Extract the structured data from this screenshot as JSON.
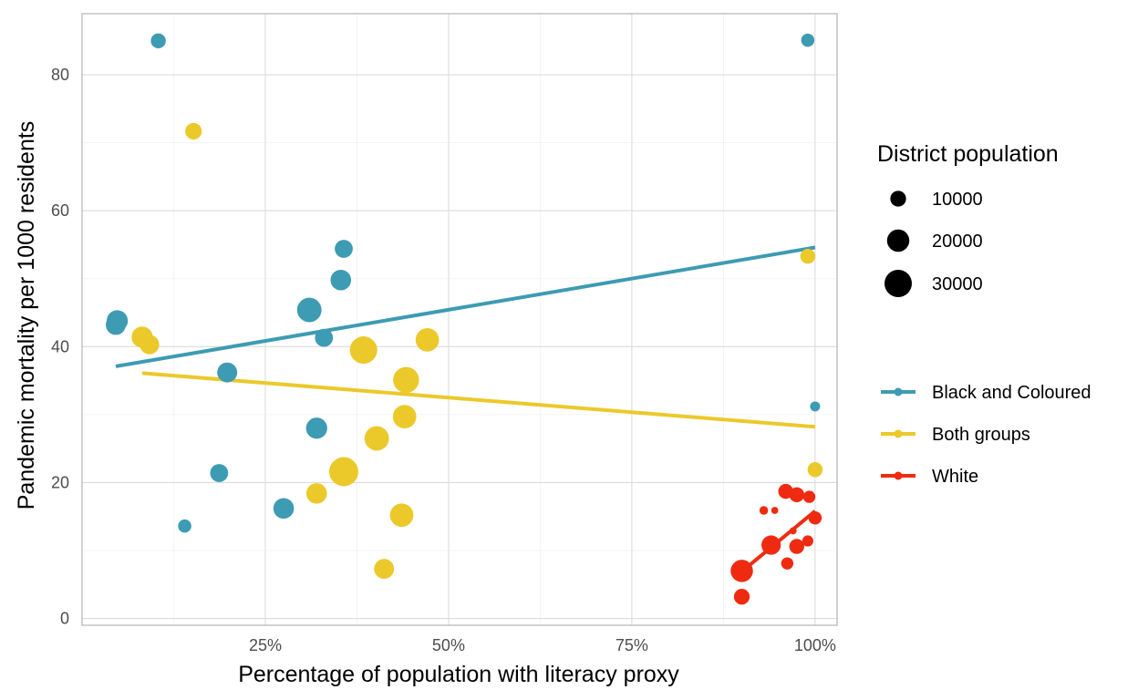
{
  "chart_data": {
    "type": "scatter",
    "title": "",
    "xlabel": "Percentage of population with literacy proxy",
    "ylabel": "Pandemic mortality per 1000 residents",
    "xlim": [
      0.0,
      1.03
    ],
    "ylim": [
      -1,
      89
    ],
    "x_ticks": [
      0.25,
      0.5,
      0.75,
      1.0
    ],
    "x_tick_labels": [
      "25%",
      "50%",
      "75%",
      "100%"
    ],
    "y_ticks": [
      0,
      20,
      40,
      60,
      80
    ],
    "y_tick_labels": [
      "0",
      "20",
      "40",
      "60",
      "80"
    ],
    "grid": true,
    "legend_position": "right",
    "size_legend": {
      "title": "District population",
      "entries": [
        {
          "value": 10000,
          "label": "10000"
        },
        {
          "value": 20000,
          "label": "20000"
        },
        {
          "value": 30000,
          "label": "30000"
        }
      ]
    },
    "series": [
      {
        "name": "Black and Coloured",
        "color": "#3d9bb3",
        "points": [
          {
            "x": 0.104,
            "y": 85.0,
            "pop": 9000
          },
          {
            "x": 0.99,
            "y": 85.1,
            "pop": 7000
          },
          {
            "x": 0.048,
            "y": 43.8,
            "pop": 18000
          },
          {
            "x": 0.046,
            "y": 43.2,
            "pop": 16000
          },
          {
            "x": 0.357,
            "y": 54.4,
            "pop": 13000
          },
          {
            "x": 0.353,
            "y": 49.8,
            "pop": 17000
          },
          {
            "x": 0.31,
            "y": 45.4,
            "pop": 24000
          },
          {
            "x": 0.33,
            "y": 41.3,
            "pop": 13000
          },
          {
            "x": 0.198,
            "y": 36.2,
            "pop": 16000
          },
          {
            "x": 0.32,
            "y": 28.0,
            "pop": 18000
          },
          {
            "x": 0.187,
            "y": 21.4,
            "pop": 13000
          },
          {
            "x": 0.275,
            "y": 16.2,
            "pop": 17000
          },
          {
            "x": 0.14,
            "y": 13.6,
            "pop": 7000
          },
          {
            "x": 1.0,
            "y": 31.2,
            "pop": 4000
          }
        ],
        "trend": {
          "x": [
            0.046,
            1.0
          ],
          "y": [
            37.1,
            54.6
          ]
        }
      },
      {
        "name": "Both groups",
        "color": "#ebc92a",
        "points": [
          {
            "x": 0.152,
            "y": 71.7,
            "pop": 11000
          },
          {
            "x": 0.082,
            "y": 41.4,
            "pop": 18000
          },
          {
            "x": 0.092,
            "y": 40.3,
            "pop": 15000
          },
          {
            "x": 0.384,
            "y": 39.5,
            "pop": 30000
          },
          {
            "x": 0.471,
            "y": 41.0,
            "pop": 22000
          },
          {
            "x": 0.442,
            "y": 35.1,
            "pop": 27000
          },
          {
            "x": 0.44,
            "y": 29.7,
            "pop": 22000
          },
          {
            "x": 0.402,
            "y": 26.5,
            "pop": 24000
          },
          {
            "x": 0.357,
            "y": 21.6,
            "pop": 34000
          },
          {
            "x": 0.32,
            "y": 18.4,
            "pop": 17000
          },
          {
            "x": 0.436,
            "y": 15.2,
            "pop": 22000
          },
          {
            "x": 0.412,
            "y": 7.3,
            "pop": 16000
          },
          {
            "x": 0.99,
            "y": 53.3,
            "pop": 9000
          },
          {
            "x": 1.0,
            "y": 21.9,
            "pop": 9000
          }
        ],
        "trend": {
          "x": [
            0.082,
            1.0
          ],
          "y": [
            36.1,
            28.2
          ]
        }
      },
      {
        "name": "White",
        "color": "#ee2b10",
        "points": [
          {
            "x": 0.96,
            "y": 18.7,
            "pop": 9000
          },
          {
            "x": 0.975,
            "y": 18.2,
            "pop": 9000
          },
          {
            "x": 0.992,
            "y": 17.9,
            "pop": 6000
          },
          {
            "x": 0.93,
            "y": 15.9,
            "pop": 3000
          },
          {
            "x": 0.945,
            "y": 15.9,
            "pop": 2000
          },
          {
            "x": 1.0,
            "y": 14.8,
            "pop": 7000
          },
          {
            "x": 0.97,
            "y": 12.9,
            "pop": 2000
          },
          {
            "x": 0.99,
            "y": 11.4,
            "pop": 5000
          },
          {
            "x": 0.975,
            "y": 10.6,
            "pop": 9000
          },
          {
            "x": 0.94,
            "y": 10.8,
            "pop": 15000
          },
          {
            "x": 0.962,
            "y": 8.1,
            "pop": 6000
          },
          {
            "x": 0.9,
            "y": 7.0,
            "pop": 20000
          },
          {
            "x": 0.9,
            "y": 3.2,
            "pop": 10000
          }
        ],
        "trend": {
          "x": [
            0.9,
            1.0
          ],
          "y": [
            6.9,
            15.8
          ]
        }
      }
    ]
  }
}
